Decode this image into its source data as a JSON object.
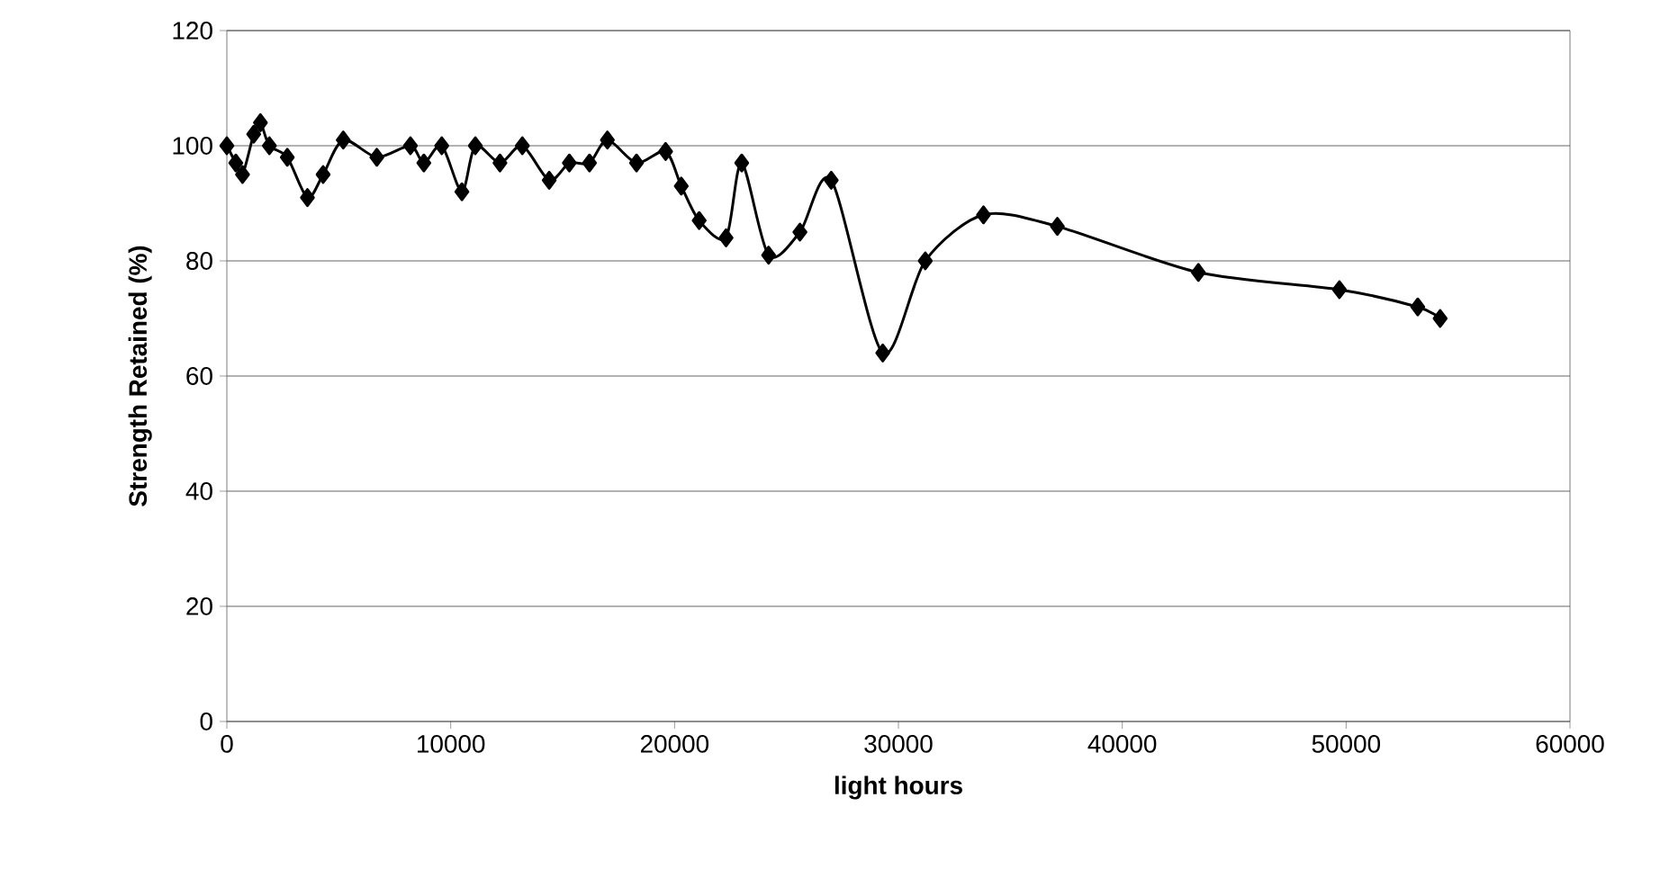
{
  "chart_data": {
    "type": "line",
    "xlabel": "light hours",
    "ylabel": "Strength Retained (%)",
    "x": [
      0,
      400,
      700,
      1200,
      1500,
      1900,
      2700,
      3600,
      4300,
      5200,
      6700,
      8200,
      8800,
      9600,
      10500,
      11100,
      12200,
      13200,
      14400,
      15300,
      16200,
      17000,
      18300,
      19600,
      20300,
      21100,
      22300,
      23000,
      24200,
      25600,
      27000,
      29300,
      31200,
      33800,
      37100,
      43400,
      49700,
      53200,
      54200
    ],
    "series": [
      {
        "color": "#000000",
        "values": [
          100,
          97,
          95,
          102,
          104,
          100,
          98,
          91,
          95,
          101,
          98,
          100,
          97,
          100,
          92,
          100,
          97,
          100,
          94,
          97,
          97,
          101,
          97,
          99,
          93,
          87,
          84,
          97,
          81,
          85,
          94,
          64,
          80,
          88,
          86,
          78,
          75,
          72,
          70
        ]
      }
    ],
    "xlim": [
      0,
      60000
    ],
    "xticks": [
      0,
      10000,
      20000,
      30000,
      40000,
      50000,
      60000
    ],
    "ylim": [
      0,
      120
    ],
    "yticks": [
      0,
      20,
      40,
      60,
      80,
      100,
      120
    ],
    "grid": "y",
    "marker": "diamond",
    "line_style": "solid"
  }
}
